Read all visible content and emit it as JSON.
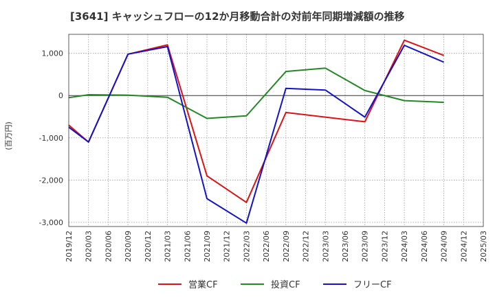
{
  "chart_data": {
    "type": "line",
    "title": "[3641]  キャッシュフローの12か月移動合計の対前年同期増減額の推移",
    "ylabel": "(百万円)",
    "xlabel": "",
    "ylim": [
      -3100,
      1450
    ],
    "yticks": [
      -3000,
      -2000,
      -1000,
      0,
      1000
    ],
    "ytick_labels": [
      "-3,000",
      "-2,000",
      "-1,000",
      "0",
      "1,000"
    ],
    "categories": [
      "2019/12",
      "2020/03",
      "2020/06",
      "2020/09",
      "2020/12",
      "2021/03",
      "2021/06",
      "2021/09",
      "2021/12",
      "2022/03",
      "2022/06",
      "2022/09",
      "2022/12",
      "2023/03",
      "2023/06",
      "2023/09",
      "2023/12",
      "2024/03",
      "2024/06",
      "2024/09",
      "2024/12",
      "2025/03"
    ],
    "grid": true,
    "legend_position": "bottom",
    "series": [
      {
        "name": "営業CF",
        "color": "#dd1111",
        "values": [
          -700,
          -1100,
          null,
          980,
          null,
          1200,
          null,
          -1900,
          null,
          -2530,
          null,
          -400,
          null,
          null,
          null,
          -620,
          null,
          1310,
          null,
          950,
          null,
          null
        ]
      },
      {
        "name": "投資CF",
        "color": "#228822",
        "values": [
          -50,
          20,
          null,
          10,
          null,
          -40,
          null,
          -540,
          null,
          -480,
          null,
          570,
          null,
          650,
          null,
          120,
          null,
          -120,
          null,
          -160,
          null,
          null
        ]
      },
      {
        "name": "フリーCF",
        "color": "#1111cc",
        "values": [
          -750,
          -1100,
          null,
          980,
          null,
          1160,
          null,
          -2440,
          null,
          -3020,
          null,
          170,
          null,
          130,
          null,
          -510,
          null,
          1190,
          null,
          790,
          null,
          null
        ]
      }
    ]
  }
}
